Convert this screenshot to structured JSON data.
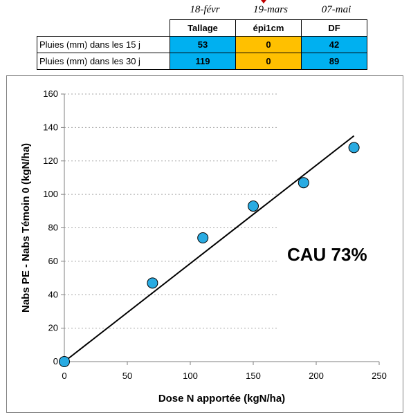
{
  "rain_table": {
    "dates": [
      "18-févr",
      "19-mars",
      "07-mai"
    ],
    "stages": [
      "Tallage",
      "épi1cm",
      "DF"
    ],
    "rows": [
      {
        "label": "Pluies (mm) dans les 15 j",
        "values": [
          "53",
          "0",
          "42"
        ]
      },
      {
        "label": "Pluies (mm) dans les 30 j",
        "values": [
          "119",
          "0",
          "89"
        ]
      }
    ],
    "colors": [
      "#00b0f0",
      "#ffc000",
      "#00b0f0"
    ]
  },
  "chart_data": {
    "type": "scatter",
    "title": "",
    "xlabel": "Dose N apportée (kgN/ha)",
    "ylabel": "Nabs PE - Nabs Témoin 0 (kgN/ha)",
    "xlim": [
      0,
      250
    ],
    "ylim": [
      0,
      160
    ],
    "xticks": [
      0,
      50,
      100,
      150,
      200,
      250
    ],
    "yticks": [
      0,
      20,
      40,
      60,
      80,
      100,
      120,
      140,
      160
    ],
    "grid": "horizontal dotted",
    "series": [
      {
        "x": [
          0,
          70,
          110,
          150,
          190,
          230
        ],
        "y": [
          0,
          47,
          74,
          93,
          107,
          128
        ],
        "marker_color": "#29abe2"
      }
    ],
    "trendline": {
      "x": [
        0,
        230
      ],
      "y": [
        0,
        135
      ]
    },
    "annotation": "CAU 73%"
  }
}
